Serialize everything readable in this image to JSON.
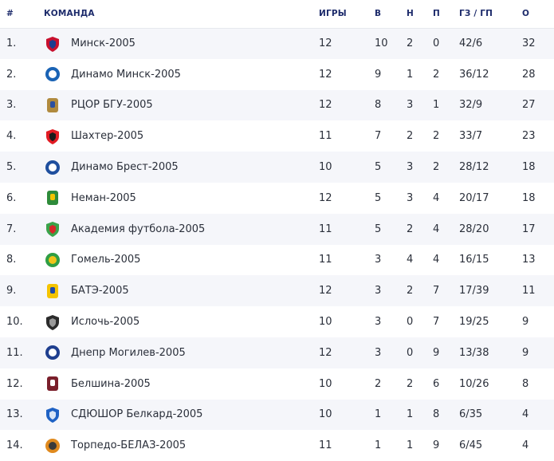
{
  "headers": {
    "pos": "#",
    "team": "КОМАНДА",
    "games": "ИГРЫ",
    "wins": "В",
    "draws": "Н",
    "losses": "П",
    "goals": "ГЗ / ГП",
    "points": "О"
  },
  "rows": [
    {
      "pos": "1.",
      "team": "Минск-2005",
      "games": "12",
      "wins": "10",
      "draws": "2",
      "losses": "0",
      "goals": "42/6",
      "points": "32",
      "crest": "minsk-crest-icon",
      "colors": [
        "#c8102e",
        "#1d3c8f"
      ]
    },
    {
      "pos": "2.",
      "team": "Динамо Минск-2005",
      "games": "12",
      "wins": "9",
      "draws": "1",
      "losses": "2",
      "goals": "36/12",
      "points": "28",
      "crest": "dinamo-minsk-crest-icon",
      "colors": [
        "#1a63b5",
        "#ffffff"
      ]
    },
    {
      "pos": "3.",
      "team": "РЦОР БГУ-2005",
      "games": "12",
      "wins": "8",
      "draws": "3",
      "losses": "1",
      "goals": "32/9",
      "points": "27",
      "crest": "bgu-crest-icon",
      "colors": [
        "#b08a3e",
        "#2b4fa0"
      ]
    },
    {
      "pos": "4.",
      "team": "Шахтер-2005",
      "games": "11",
      "wins": "7",
      "draws": "2",
      "losses": "2",
      "goals": "33/7",
      "points": "23",
      "crest": "shakhtar-crest-icon",
      "colors": [
        "#e21b23",
        "#1a1a1a"
      ]
    },
    {
      "pos": "5.",
      "team": "Динамо Брест-2005",
      "games": "10",
      "wins": "5",
      "draws": "3",
      "losses": "2",
      "goals": "28/12",
      "points": "18",
      "crest": "dinamo-brest-crest-icon",
      "colors": [
        "#1f4f9e",
        "#ffffff"
      ]
    },
    {
      "pos": "6.",
      "team": "Неман-2005",
      "games": "12",
      "wins": "5",
      "draws": "3",
      "losses": "4",
      "goals": "20/17",
      "points": "18",
      "crest": "neman-crest-icon",
      "colors": [
        "#2e8b3a",
        "#f2c300"
      ]
    },
    {
      "pos": "7.",
      "team": "Академия футбола-2005",
      "games": "11",
      "wins": "5",
      "draws": "2",
      "losses": "4",
      "goals": "28/20",
      "points": "17",
      "crest": "academy-crest-icon",
      "colors": [
        "#3aa34a",
        "#d62828"
      ]
    },
    {
      "pos": "8.",
      "team": "Гомель-2005",
      "games": "11",
      "wins": "3",
      "draws": "4",
      "losses": "4",
      "goals": "16/15",
      "points": "13",
      "crest": "gomel-crest-icon",
      "colors": [
        "#2f9e44",
        "#f0c419"
      ]
    },
    {
      "pos": "9.",
      "team": "БАТЭ-2005",
      "games": "12",
      "wins": "3",
      "draws": "2",
      "losses": "7",
      "goals": "17/39",
      "points": "11",
      "crest": "bate-crest-icon",
      "colors": [
        "#f5c400",
        "#1f4aa8"
      ]
    },
    {
      "pos": "10.",
      "team": "Ислочь-2005",
      "games": "10",
      "wins": "3",
      "draws": "0",
      "losses": "7",
      "goals": "19/25",
      "points": "9",
      "crest": "isloch-crest-icon",
      "colors": [
        "#2b2b2b",
        "#9a9a9a"
      ]
    },
    {
      "pos": "11.",
      "team": "Днепр Могилев-2005",
      "games": "12",
      "wins": "3",
      "draws": "0",
      "losses": "9",
      "goals": "13/38",
      "points": "9",
      "crest": "dnepr-crest-icon",
      "colors": [
        "#1f3f8f",
        "#ffffff"
      ]
    },
    {
      "pos": "12.",
      "team": "Белшина-2005",
      "games": "10",
      "wins": "2",
      "draws": "2",
      "losses": "6",
      "goals": "10/26",
      "points": "8",
      "crest": "belshina-crest-icon",
      "colors": [
        "#7a1f2b",
        "#ffffff"
      ]
    },
    {
      "pos": "13.",
      "team": "СДЮШОР Белкард-2005",
      "games": "10",
      "wins": "1",
      "draws": "1",
      "losses": "8",
      "goals": "6/35",
      "points": "4",
      "crest": "belkard-crest-icon",
      "colors": [
        "#1f62c4",
        "#d9e6f7"
      ]
    },
    {
      "pos": "14.",
      "team": "Торпедо-БЕЛАЗ-2005",
      "games": "11",
      "wins": "1",
      "draws": "1",
      "losses": "9",
      "goals": "6/45",
      "points": "4",
      "crest": "torpedo-belaz-crest-icon",
      "colors": [
        "#e08a1e",
        "#3a3a3a"
      ]
    }
  ]
}
